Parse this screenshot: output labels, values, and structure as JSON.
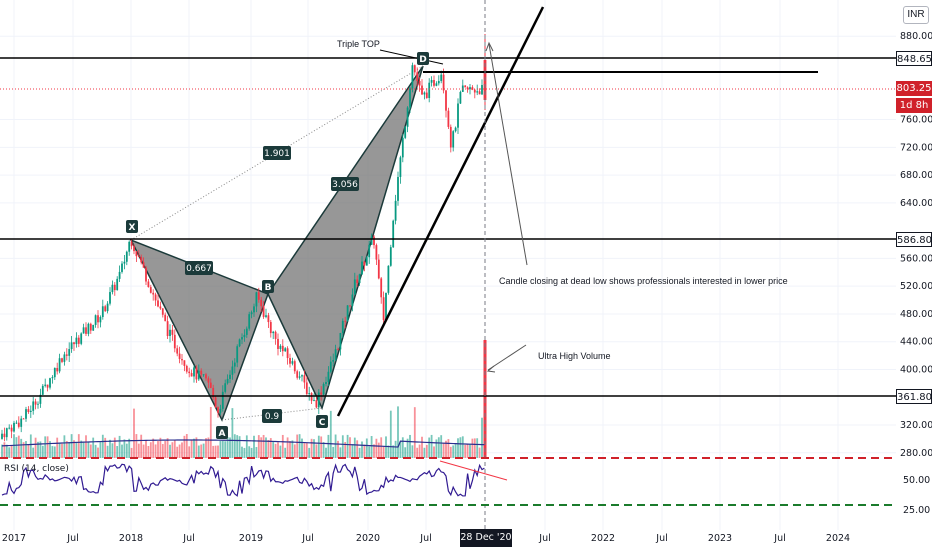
{
  "header": {
    "currency": "INR"
  },
  "price_axis": {
    "ticks": [
      "880.00",
      "760.00",
      "720.00",
      "680.00",
      "640.00",
      "560.00",
      "520.00",
      "480.00",
      "440.00",
      "400.00",
      "320.00",
      "280.00"
    ],
    "tick_values": [
      880,
      760,
      720,
      680,
      640,
      560,
      520,
      480,
      440,
      400,
      320,
      280
    ],
    "rsi_ticks": [
      "50.00",
      "25.00"
    ],
    "badges": {
      "resistance_top": "848.65",
      "last_price": "803.25",
      "countdown": "1d 8h",
      "level_mid": "586.80",
      "level_low": "361.80"
    }
  },
  "time_axis": {
    "labels": [
      "2017",
      "Jul",
      "2018",
      "Jul",
      "2019",
      "Jul",
      "2020",
      "Jul",
      "Jul",
      "2022",
      "Jul",
      "2023",
      "Jul",
      "2024"
    ],
    "cursor_date": "28 Dec '20"
  },
  "indicator": {
    "label": "RSI (14, close)"
  },
  "annotations": {
    "triple_top": "Triple TOP",
    "candle_note": "Candle closing at dead low shows professionals interested in lower price",
    "volume_note": "Ultra High Volume",
    "fib_xb": "0.667",
    "fib_xd": "1.901",
    "fib_bd": "3.056",
    "fib_ac": "0.9"
  },
  "pattern_points": {
    "X": "X",
    "A": "A",
    "B": "B",
    "C": "C",
    "D": "D"
  },
  "colors": {
    "up": "#089981",
    "down": "#f23645",
    "pattern_fill": "#6b6b6b",
    "level_line": "#000000",
    "rsi_line": "#311b92",
    "ma_line": "#2a2e8e",
    "dashed_red": "#d0212a",
    "dashed_green": "#1b7b2c"
  },
  "chart_data": {
    "type": "candlestick",
    "price_levels": [
      848.65,
      803.25,
      586.8,
      361.8
    ],
    "pattern": {
      "X": {
        "date": "2018-01",
        "price": 590
      },
      "A": {
        "date": "2018-10",
        "price": 330
      },
      "B": {
        "date": "2019-02",
        "price": 505
      },
      "C": {
        "date": "2019-08",
        "price": 345
      },
      "D": {
        "date": "2020-06",
        "price": 848
      }
    },
    "close_series": [
      {
        "date": "2016-11",
        "price": 300
      },
      {
        "date": "2017-02",
        "price": 330
      },
      {
        "date": "2017-04",
        "price": 370
      },
      {
        "date": "2017-06",
        "price": 420
      },
      {
        "date": "2017-08",
        "price": 450
      },
      {
        "date": "2017-10",
        "price": 480
      },
      {
        "date": "2017-12",
        "price": 540
      },
      {
        "date": "2018-01",
        "price": 590
      },
      {
        "date": "2018-03",
        "price": 520
      },
      {
        "date": "2018-05",
        "price": 450
      },
      {
        "date": "2018-07",
        "price": 400
      },
      {
        "date": "2018-09",
        "price": 380
      },
      {
        "date": "2018-10",
        "price": 340
      },
      {
        "date": "2018-12",
        "price": 430
      },
      {
        "date": "2019-02",
        "price": 505
      },
      {
        "date": "2019-04",
        "price": 440
      },
      {
        "date": "2019-06",
        "price": 400
      },
      {
        "date": "2019-08",
        "price": 350
      },
      {
        "date": "2019-10",
        "price": 420
      },
      {
        "date": "2019-12",
        "price": 520
      },
      {
        "date": "2020-02",
        "price": 590
      },
      {
        "date": "2020-03",
        "price": 470
      },
      {
        "date": "2020-04",
        "price": 620
      },
      {
        "date": "2020-06",
        "price": 840
      },
      {
        "date": "2020-07",
        "price": 790
      },
      {
        "date": "2020-09",
        "price": 830
      },
      {
        "date": "2020-10",
        "price": 720
      },
      {
        "date": "2020-11",
        "price": 800
      },
      {
        "date": "2020-12",
        "price": 803.25
      }
    ],
    "ylim": [
      240,
      900
    ],
    "rsi_levels": [
      70,
      30
    ],
    "volume_spike_date": "2020-12-28"
  }
}
